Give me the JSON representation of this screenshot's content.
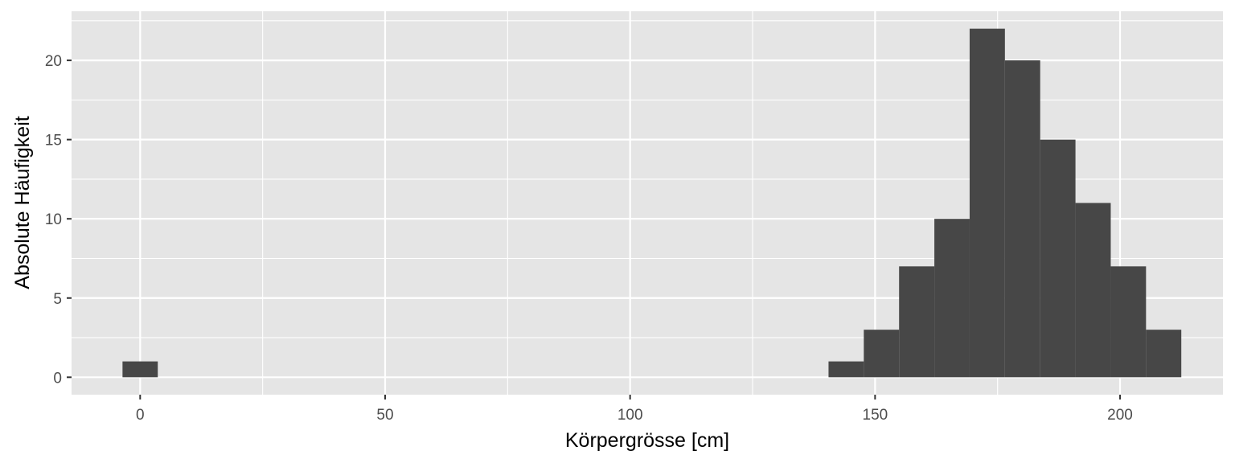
{
  "chart_data": {
    "type": "bar",
    "subtype": "histogram",
    "title": "",
    "xlabel": "Körpergrösse [cm]",
    "ylabel": "Absolute Häufigkeit",
    "xlim": [
      -14,
      221
    ],
    "ylim": [
      -1.1,
      23.1
    ],
    "x_ticks": [
      0,
      50,
      100,
      150,
      200
    ],
    "y_ticks": [
      0,
      5,
      10,
      15,
      20
    ],
    "bin_width": 7.2,
    "bins": [
      {
        "x0": -3.6,
        "x1": 3.6,
        "count": 1
      },
      {
        "x0": 140.5,
        "x1": 147.7,
        "count": 1
      },
      {
        "x0": 147.7,
        "x1": 154.9,
        "count": 3
      },
      {
        "x0": 154.9,
        "x1": 162.1,
        "count": 7
      },
      {
        "x0": 162.1,
        "x1": 169.3,
        "count": 10
      },
      {
        "x0": 169.3,
        "x1": 176.5,
        "count": 22
      },
      {
        "x0": 176.5,
        "x1": 183.7,
        "count": 20
      },
      {
        "x0": 183.7,
        "x1": 190.9,
        "count": 15
      },
      {
        "x0": 190.9,
        "x1": 198.1,
        "count": 11
      },
      {
        "x0": 198.1,
        "x1": 205.3,
        "count": 7
      },
      {
        "x0": 205.3,
        "x1": 212.5,
        "count": 3
      }
    ],
    "grid": true,
    "legend": "none",
    "colors": {
      "panel_background": "#e5e5e5",
      "grid_line": "#ffffff",
      "bar_fill": "#474747",
      "tick_text": "#4d4d4d",
      "axis_title": "#000000",
      "tick_mark": "#333333"
    }
  }
}
